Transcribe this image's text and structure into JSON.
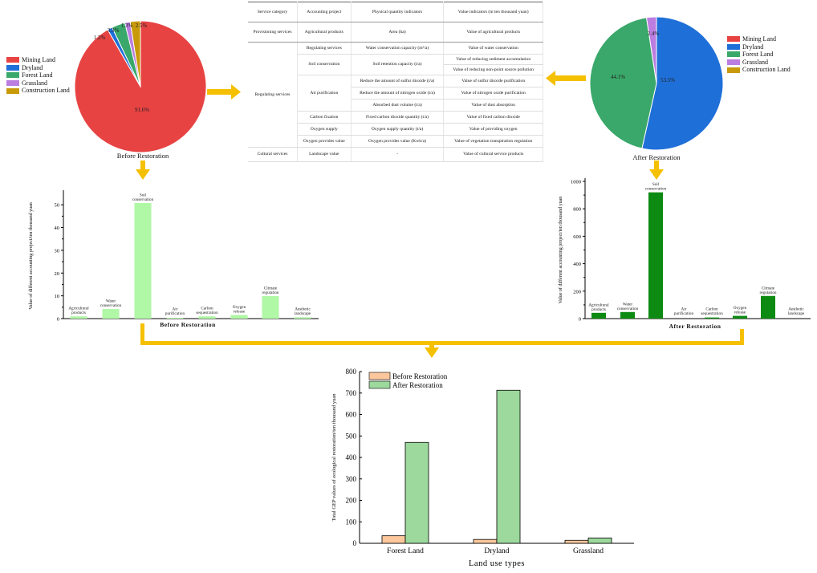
{
  "colors": {
    "connector": "#f5c000",
    "mining": "#e84343",
    "dryland": "#1f6fd8",
    "forest": "#3aa86a",
    "grassland": "#bb7de0",
    "construction": "#c89a0a",
    "bar_before": "#b0f7a6",
    "bar_after": "#0d8a12",
    "gep_before": "#fcc79c",
    "gep_after": "#9dd89d"
  },
  "table": {
    "headers": [
      "Service category",
      "Accounting project",
      "Physical quantity indicators",
      "Value indicators (in ten thousand yuan)"
    ],
    "provisioning": {
      "category": "Provisioning services",
      "project": "Agricultural products",
      "physical": "Area (ha)",
      "value": "Value of agricultural products"
    },
    "regulating_category": "Regulating services",
    "rows": [
      {
        "project": "Regulating services",
        "physical": "Water conservation capacity (m³/a)",
        "value": "Value of water conservation"
      },
      {
        "project": "Soil conservation",
        "physical": "Soil retention capacity (t/a)",
        "value": "Value of reducing sediment accumulation",
        "value2": "Value of reducing non-point source pollution"
      },
      {
        "project": "Air purification",
        "physical": "Reduce the amount of sulfur dioxide (t/a)",
        "value": "Value of sulfur dioxide purification",
        "physical2": "Reduce the amount of nitrogen oxide (t/a)",
        "value2": "Value of nitrogen oxide purification",
        "physical3": "Absorbed dust volume (t/a)",
        "value3": "Value of dust absorption"
      },
      {
        "project": "Carbon fixation",
        "physical": "Fixed carbon dioxide quantity (t/a)",
        "value": "Value of fixed carbon dioxide"
      },
      {
        "project": "Oxygen supply",
        "physical": "Oxygen supply quantity (t/a)",
        "value": "Value of providing oxygen"
      },
      {
        "project": "Oxygen provides value",
        "physical": "Oxygen provides value (Kwh/a)",
        "value": "Value of vegetation transpiration regulation"
      }
    ],
    "cultural": {
      "category": "Cultural services",
      "project": "Landscape value",
      "physical": "-",
      "value": "Value of cultural service products"
    }
  },
  "legend_items": [
    "Mining Land",
    "Dryland",
    "Forest Land",
    "Grassland",
    "Construction Land"
  ],
  "chart_data": [
    {
      "type": "pie",
      "title": "Before Restoration",
      "labels": [
        "Mining Land",
        "Dryland",
        "Forest Land",
        "Grassland",
        "Construction Land"
      ],
      "values": [
        91.6,
        1.2,
        3.3,
        1.3,
        2.5
      ],
      "value_labels": [
        "91.6%",
        "1.2%",
        "3.3%",
        "1.3%",
        "2.5%"
      ],
      "legend": "left"
    },
    {
      "type": "pie",
      "title": "After Restoration",
      "labels": [
        "Mining Land",
        "Dryland",
        "Forest Land",
        "Grassland",
        "Construction Land"
      ],
      "values": [
        0,
        53.5,
        44.1,
        2.4,
        0
      ],
      "value_labels": [
        "",
        "53.5%",
        "44.1%",
        "2.4%",
        ""
      ],
      "legend": "right"
    },
    {
      "type": "bar",
      "title": "Before Restoration",
      "ylabel": "Value of different accounting project/ten thousand yuan",
      "categories": [
        "Agricultural\nproducts",
        "Water\nconservation",
        "Soil\nconservation",
        "Air\npurification",
        "Carbon\nsequestration",
        "Oxygen\nrelease",
        "Climate\nregulation",
        "Aesthetic\nlandscape"
      ],
      "values": [
        1.0,
        4.2,
        50.8,
        0.3,
        1.0,
        1.6,
        9.9,
        0.6
      ],
      "ylim": [
        0,
        55
      ],
      "yticks": [
        "0",
        "10",
        "20",
        "30",
        "40",
        "50"
      ]
    },
    {
      "type": "bar",
      "title": "After Restoration",
      "ylabel": "Value of different accounting project/ten thousand yuan",
      "categories": [
        "Agricultural\nproducts",
        "Water\nconservation",
        "Soil\nconservation",
        "Air\npurification",
        "Carbon\nsequestration",
        "Oxygen\nrelease",
        "Climate\nregulation",
        "Aesthetic\nlandscape"
      ],
      "values": [
        42,
        48,
        920,
        0,
        8,
        20,
        165,
        0
      ],
      "ylim": [
        0,
        1000
      ],
      "yticks": [
        "0",
        "200",
        "400",
        "600",
        "800",
        "1000"
      ]
    },
    {
      "type": "bar",
      "title": "",
      "xlabel": "Land use types",
      "ylabel": "Total GEP values of ecological restoration/ten thousand yuan",
      "categories": [
        "Forest Land",
        "Dryland",
        "Grassland"
      ],
      "series": [
        {
          "name": "Before Restoration",
          "values": [
            35,
            18,
            14
          ]
        },
        {
          "name": "After Restoration",
          "values": [
            470,
            713,
            25
          ]
        }
      ],
      "ylim": [
        0,
        800
      ],
      "yticks": [
        "0",
        "100",
        "200",
        "300",
        "400",
        "500",
        "600",
        "700",
        "800"
      ],
      "legend": "top-left"
    }
  ]
}
